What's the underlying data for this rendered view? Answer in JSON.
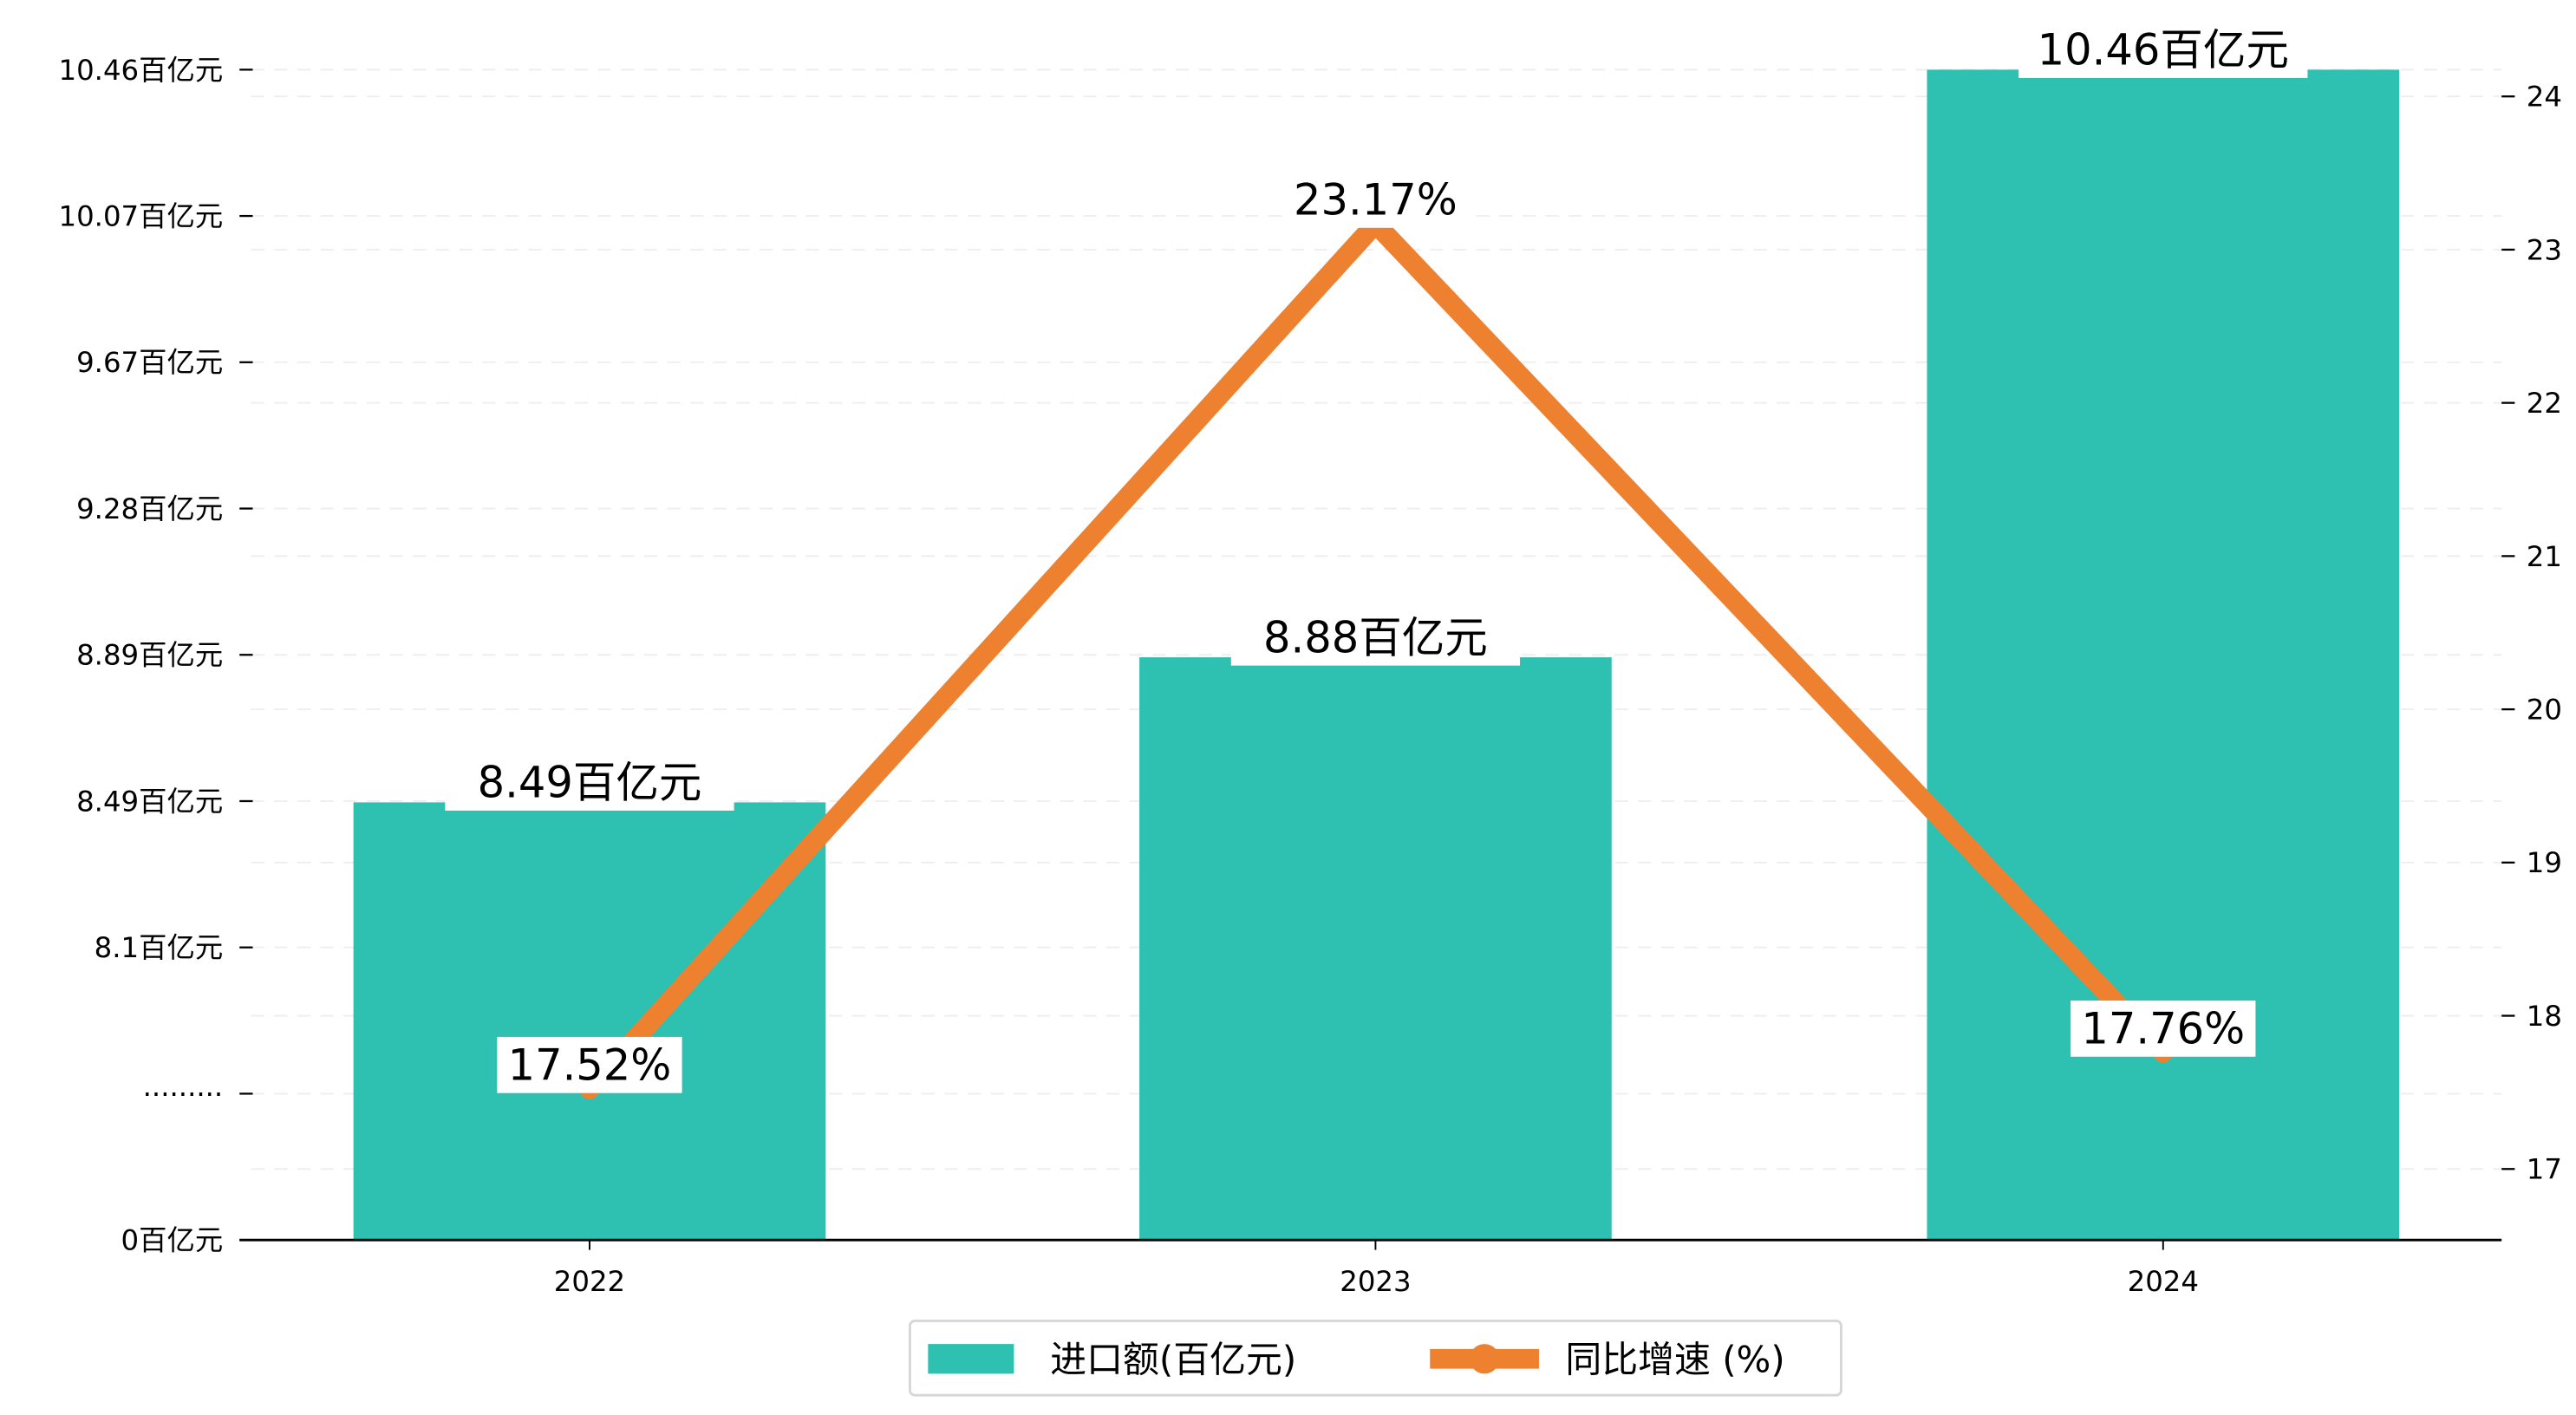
{
  "chart_data": {
    "type": "bar+line",
    "categories": [
      "2022",
      "2023",
      "2024"
    ],
    "series": [
      {
        "name": "进口额(百亿元)",
        "type": "bar",
        "axis": "left",
        "values": [
          8.49,
          8.88,
          10.46
        ],
        "labels": [
          "8.49百亿元",
          "8.88百亿元",
          "10.46百亿元"
        ],
        "color": "#20bba9"
      },
      {
        "name": "同比增速 (%)",
        "type": "line",
        "axis": "right",
        "values": [
          17.52,
          23.17,
          17.76
        ],
        "labels": [
          "17.52%",
          "23.17%",
          "17.76%"
        ],
        "color": "#ee8130"
      }
    ],
    "left_axis": {
      "tick_labels": [
        "0百亿元",
        "·········",
        "8.1百亿元",
        "8.49百亿元",
        "8.89百亿元",
        "9.28百亿元",
        "9.67百亿元",
        "10.07百亿元",
        "10.46百亿元"
      ],
      "broken": true,
      "range_above_break": [
        8.1,
        10.46
      ]
    },
    "right_axis": {
      "ticks": [
        17,
        18,
        19,
        20,
        21,
        22,
        23,
        24
      ],
      "ylim": [
        16.53,
        24.15
      ]
    },
    "grid": true,
    "legend": {
      "placement": "bottom-center",
      "entries": [
        "进口额(百亿元)",
        "同比增速 (%)"
      ]
    }
  }
}
